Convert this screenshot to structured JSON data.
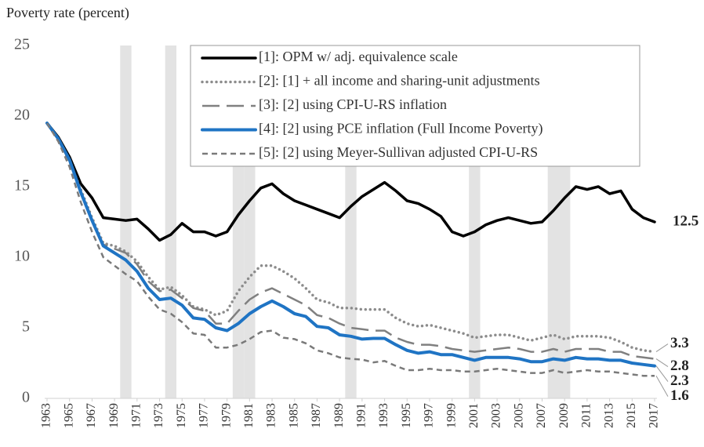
{
  "chart_data": {
    "type": "line",
    "y_axis_title": "Poverty rate (percent)",
    "x": [
      1963,
      1964,
      1965,
      1966,
      1967,
      1968,
      1969,
      1970,
      1971,
      1972,
      1973,
      1974,
      1975,
      1976,
      1977,
      1978,
      1979,
      1980,
      1981,
      1982,
      1983,
      1984,
      1985,
      1986,
      1987,
      1988,
      1989,
      1990,
      1991,
      1992,
      1993,
      1994,
      1995,
      1996,
      1997,
      1998,
      1999,
      2000,
      2001,
      2002,
      2003,
      2004,
      2005,
      2006,
      2007,
      2008,
      2009,
      2010,
      2011,
      2012,
      2013,
      2014,
      2015,
      2016,
      2017
    ],
    "xlim": [
      1963,
      2017
    ],
    "xticks": [
      1963,
      1965,
      1967,
      1969,
      1971,
      1973,
      1975,
      1977,
      1979,
      1981,
      1983,
      1985,
      1987,
      1989,
      1991,
      1993,
      1995,
      1997,
      1999,
      2001,
      2003,
      2005,
      2007,
      2009,
      2011,
      2013,
      2015,
      2017
    ],
    "ylim": [
      0,
      25
    ],
    "yticks": [
      0,
      5,
      10,
      15,
      20,
      25
    ],
    "shaded_years": [
      1970,
      1974,
      1980,
      1981,
      1990,
      2001,
      2008,
      2009
    ],
    "series": [
      {
        "name": "[1]: OPM w/ adj. equivalence scale",
        "color": "#000000",
        "dash": "solid",
        "values": [
          19.5,
          18.5,
          17.1,
          15.2,
          14.2,
          12.8,
          12.7,
          12.6,
          12.7,
          12.0,
          11.2,
          11.6,
          12.4,
          11.8,
          11.8,
          11.5,
          11.8,
          13.0,
          14.0,
          14.9,
          15.2,
          14.5,
          14.0,
          13.7,
          13.4,
          13.1,
          12.8,
          13.6,
          14.3,
          14.8,
          15.3,
          14.7,
          14.0,
          13.8,
          13.4,
          12.9,
          11.8,
          11.5,
          11.8,
          12.3,
          12.6,
          12.8,
          12.6,
          12.4,
          12.5,
          13.3,
          14.2,
          15.0,
          14.8,
          15.0,
          14.5,
          14.7,
          13.4,
          12.8,
          12.5
        ]
      },
      {
        "name": "[2]: [1] + all income and sharing-unit adjustments",
        "color": "#8c8c8c",
        "dash": "dotted",
        "values": [
          19.5,
          18.3,
          16.8,
          14.8,
          12.8,
          11.0,
          10.8,
          10.4,
          9.7,
          8.6,
          7.7,
          7.9,
          7.3,
          6.5,
          6.3,
          5.9,
          6.2,
          7.6,
          8.6,
          9.4,
          9.4,
          9.0,
          8.5,
          7.8,
          7.0,
          6.8,
          6.4,
          6.4,
          6.3,
          6.3,
          6.3,
          5.7,
          5.3,
          5.1,
          5.2,
          5.0,
          4.8,
          4.6,
          4.3,
          4.4,
          4.5,
          4.5,
          4.3,
          4.1,
          4.3,
          4.5,
          4.2,
          4.4,
          4.4,
          4.4,
          4.3,
          4.0,
          3.6,
          3.4,
          3.3
        ]
      },
      {
        "name": "[3]: [2] using CPI-U-RS inflation",
        "color": "#808080",
        "dash": "long-dash",
        "values": [
          19.5,
          18.3,
          16.8,
          14.6,
          12.6,
          10.9,
          10.6,
          10.3,
          9.5,
          8.3,
          7.6,
          7.7,
          7.1,
          6.4,
          6.2,
          5.3,
          5.3,
          6.2,
          7.0,
          7.5,
          7.8,
          7.4,
          7.0,
          6.6,
          5.9,
          5.7,
          5.3,
          5.0,
          4.9,
          4.8,
          4.8,
          4.3,
          4.0,
          3.8,
          3.8,
          3.7,
          3.5,
          3.4,
          3.3,
          3.4,
          3.5,
          3.6,
          3.5,
          3.3,
          3.3,
          3.5,
          3.3,
          3.5,
          3.5,
          3.5,
          3.3,
          3.3,
          3.0,
          2.9,
          2.8
        ]
      },
      {
        "name": "[4]: [2] using PCE inflation (Full Income Poverty)",
        "color": "#1f74c4",
        "dash": "solid",
        "values": [
          19.5,
          18.4,
          16.9,
          14.6,
          12.6,
          10.8,
          10.3,
          9.8,
          9.0,
          7.8,
          7.0,
          7.1,
          6.6,
          5.7,
          5.6,
          5.0,
          4.8,
          5.3,
          6.0,
          6.5,
          6.9,
          6.5,
          6.0,
          5.8,
          5.1,
          5.0,
          4.5,
          4.4,
          4.2,
          4.25,
          4.25,
          3.8,
          3.4,
          3.2,
          3.3,
          3.1,
          3.1,
          2.9,
          2.7,
          2.9,
          2.9,
          2.9,
          2.8,
          2.6,
          2.6,
          2.8,
          2.7,
          2.9,
          2.8,
          2.8,
          2.7,
          2.7,
          2.5,
          2.4,
          2.3
        ]
      },
      {
        "name": "[5]: [2] using Meyer-Sullivan adjusted CPI-U-RS",
        "color": "#7a7a7a",
        "dash": "short-dash",
        "values": [
          19.5,
          18.2,
          16.4,
          13.9,
          11.8,
          10.0,
          9.4,
          8.8,
          8.3,
          7.2,
          6.3,
          6.0,
          5.4,
          4.6,
          4.5,
          3.6,
          3.6,
          3.8,
          4.2,
          4.7,
          4.8,
          4.3,
          4.2,
          3.9,
          3.4,
          3.2,
          2.9,
          2.8,
          2.75,
          2.55,
          2.65,
          2.3,
          2.0,
          2.0,
          2.1,
          2.0,
          2.0,
          1.9,
          1.9,
          2.0,
          2.1,
          2.0,
          1.9,
          1.8,
          1.8,
          2.0,
          1.8,
          1.9,
          2.0,
          1.9,
          1.9,
          1.8,
          1.7,
          1.6,
          1.6
        ]
      }
    ]
  }
}
